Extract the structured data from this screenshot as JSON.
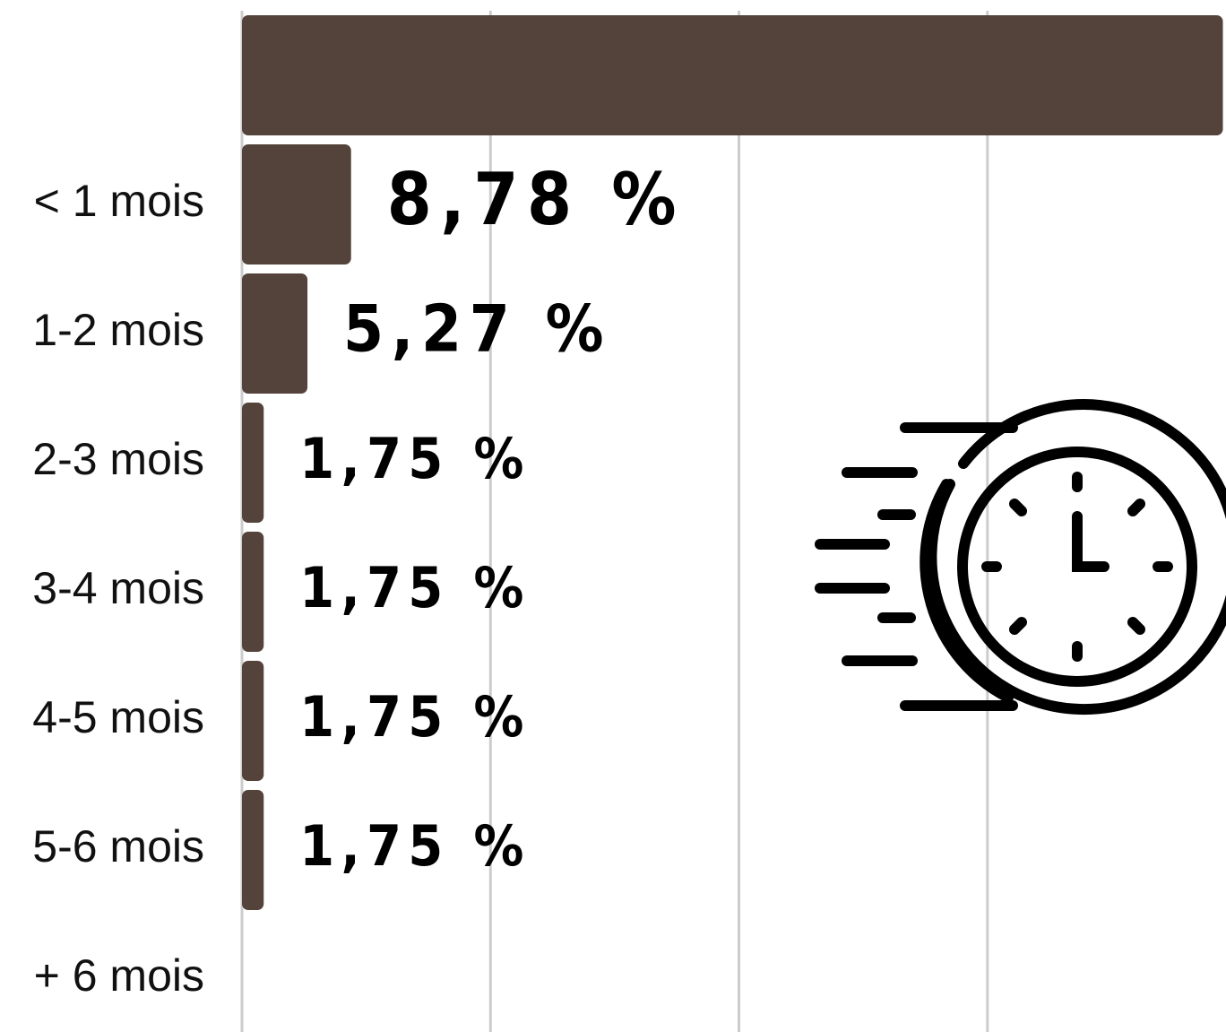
{
  "chart_data": {
    "type": "bar",
    "orientation": "horizontal",
    "categories": [
      null,
      "< 1  mois",
      "1-2 mois",
      "2-3 mois",
      "3-4 mois",
      "4-5 mois",
      "5-6 mois",
      "+ 6 mois"
    ],
    "values": [
      78.95,
      8.78,
      5.27,
      1.75,
      1.75,
      1.75,
      1.75,
      0
    ],
    "value_labels": [
      null,
      "8,78  %",
      "5,27  %",
      "1,75  %",
      "1,75  %",
      "1,75  %",
      "1,75  %",
      null
    ],
    "color": "#54433a",
    "xlim": [
      0,
      79.2
    ],
    "xticks": [
      0,
      20,
      40,
      60
    ],
    "grid": true
  }
}
